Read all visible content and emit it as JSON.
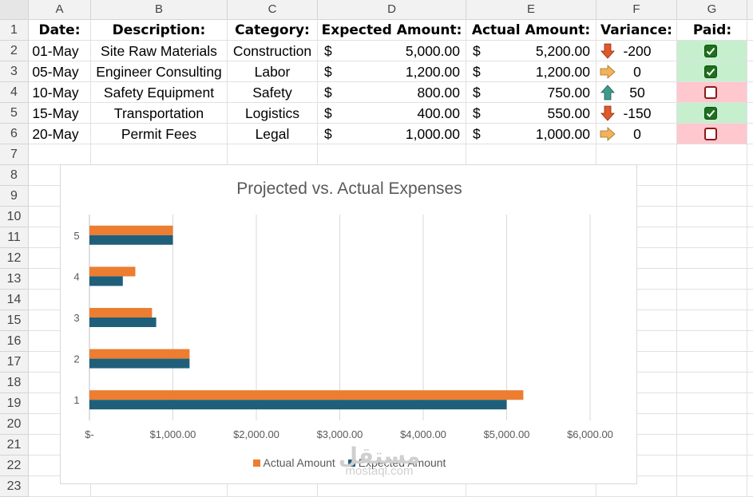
{
  "columns": [
    "A",
    "B",
    "C",
    "D",
    "E",
    "F",
    "G"
  ],
  "rows": [
    "1",
    "2",
    "3",
    "4",
    "5",
    "6",
    "7",
    "8",
    "9",
    "10",
    "11",
    "12",
    "13",
    "14",
    "15",
    "16",
    "17",
    "18",
    "19",
    "20",
    "21",
    "22",
    "23"
  ],
  "headers": {
    "date": "Date:",
    "description": "Description:",
    "category": "Category:",
    "expected": "Expected Amount:",
    "actual": "Actual Amount:",
    "variance": "Variance:",
    "paid": "Paid:"
  },
  "currency_symbol": "$",
  "records": [
    {
      "date": "01-May",
      "description": "Site Raw Materials",
      "category": "Construction",
      "expected": "5,000.00",
      "actual": "5,200.00",
      "variance": "-200",
      "variance_icon": "arrow-down-icon",
      "paid": true
    },
    {
      "date": "05-May",
      "description": "Engineer Consulting",
      "category": "Labor",
      "expected": "1,200.00",
      "actual": "1,200.00",
      "variance": "0",
      "variance_icon": "arrow-right-icon",
      "paid": true
    },
    {
      "date": "10-May",
      "description": "Safety Equipment",
      "category": "Safety",
      "expected": "800.00",
      "actual": "750.00",
      "variance": "50",
      "variance_icon": "arrow-up-icon",
      "paid": false
    },
    {
      "date": "15-May",
      "description": "Transportation",
      "category": "Logistics",
      "expected": "400.00",
      "actual": "550.00",
      "variance": "-150",
      "variance_icon": "arrow-down-icon",
      "paid": true
    },
    {
      "date": "20-May",
      "description": "Permit Fees",
      "category": "Legal",
      "expected": "1,000.00",
      "actual": "1,000.00",
      "variance": "0",
      "variance_icon": "arrow-right-icon",
      "paid": false
    }
  ],
  "colors": {
    "actual": "#ed7d31",
    "expected": "#1f5f7a",
    "paid_yes_bg": "#c6efce",
    "paid_no_bg": "#ffc7ce",
    "arrow_down": "#e0592a",
    "arrow_up": "#3f9a8a",
    "arrow_right": "#f0b25a"
  },
  "chart_data": {
    "type": "bar",
    "orientation": "horizontal",
    "title": "Projected vs. Actual Expenses",
    "categories": [
      "1",
      "2",
      "3",
      "4",
      "5"
    ],
    "series": [
      {
        "name": "Actual Amount",
        "values": [
          5200,
          1200,
          750,
          550,
          1000
        ]
      },
      {
        "name": "Expected Amount",
        "values": [
          5000,
          1200,
          800,
          400,
          1000
        ]
      }
    ],
    "xlim": [
      0,
      6000
    ],
    "xticks": [
      "$-",
      "$1,000.00",
      "$2,000.00",
      "$3,000.00",
      "$4,000.00",
      "$5,000.00",
      "$6,000.00"
    ],
    "grid": true,
    "legend_position": "bottom"
  },
  "watermark": {
    "arabic": "مستقل",
    "latin": "mostaql.com"
  }
}
